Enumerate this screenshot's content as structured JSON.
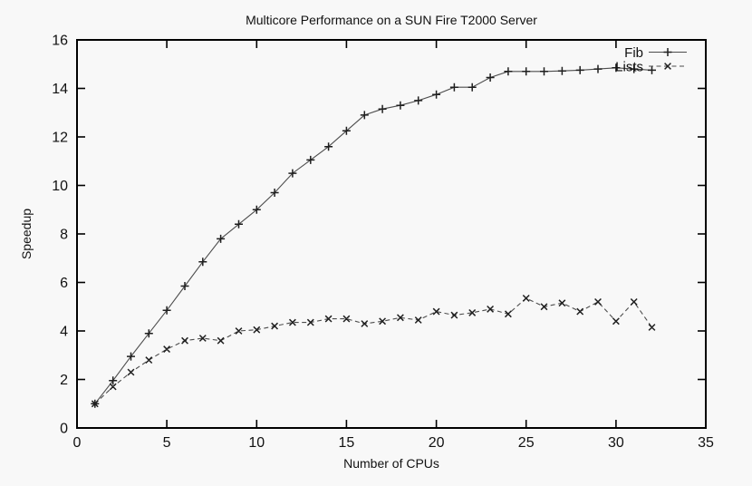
{
  "page": {
    "background": "#f8f8f8",
    "axis_color": "#000000",
    "text_color": "#111111"
  },
  "chart_data": {
    "type": "line",
    "title": "Multicore Performance on a SUN Fire T2000 Server",
    "xlabel": "Number of CPUs",
    "ylabel": "Speedup",
    "xlim": [
      0,
      35
    ],
    "ylim": [
      0,
      16
    ],
    "xticks": [
      0,
      5,
      10,
      15,
      20,
      25,
      30,
      35
    ],
    "yticks": [
      0,
      2,
      4,
      6,
      8,
      10,
      12,
      14,
      16
    ],
    "grid": false,
    "legend_position": "top-right-inside",
    "x": [
      1,
      2,
      3,
      4,
      5,
      6,
      7,
      8,
      9,
      10,
      11,
      12,
      13,
      14,
      15,
      16,
      17,
      18,
      19,
      20,
      21,
      22,
      23,
      24,
      25,
      26,
      27,
      28,
      29,
      30,
      31,
      32
    ],
    "series": [
      {
        "name": "Fib",
        "style": "solid",
        "marker": "plus",
        "color": "#4d4d4d",
        "marker_color": "#1f1f1f",
        "values": [
          1.0,
          1.95,
          2.95,
          3.9,
          4.85,
          5.85,
          6.85,
          7.8,
          8.4,
          9.0,
          9.7,
          10.5,
          11.05,
          11.6,
          12.25,
          12.9,
          13.15,
          13.3,
          13.5,
          13.75,
          14.05,
          14.05,
          14.45,
          14.7,
          14.7,
          14.7,
          14.72,
          14.75,
          14.8,
          14.85,
          14.8,
          14.75
        ]
      },
      {
        "name": "Lists",
        "style": "dashed",
        "marker": "cross",
        "color": "#4d4d4d",
        "marker_color": "#1f1f1f",
        "values": [
          1.0,
          1.7,
          2.3,
          2.8,
          3.25,
          3.6,
          3.7,
          3.6,
          4.0,
          4.05,
          4.2,
          4.35,
          4.35,
          4.5,
          4.5,
          4.3,
          4.4,
          4.55,
          4.45,
          4.8,
          4.65,
          4.75,
          4.9,
          4.7,
          5.35,
          5.0,
          5.15,
          4.8,
          5.2,
          4.4,
          5.2,
          4.15
        ]
      }
    ]
  }
}
